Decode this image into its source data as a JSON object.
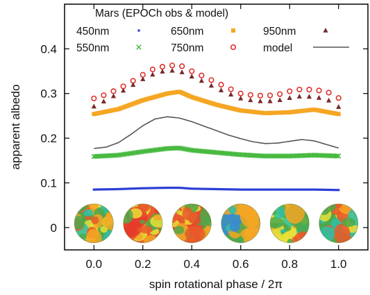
{
  "chart_data": {
    "type": "scatter",
    "title": "Mars (EPOCh obs & model)",
    "xlabel": "spin rotational phase / 2π",
    "ylabel": "apparent albedo",
    "xlim": [
      -0.12,
      1.12
    ],
    "ylim": [
      -0.05,
      0.5
    ],
    "x_ticks": [
      "0.0",
      "0.2",
      "0.4",
      "0.6",
      "0.8",
      "1.0"
    ],
    "y_ticks": [
      "0",
      "0.1",
      "0.2",
      "0.3",
      "0.4"
    ],
    "grid": false,
    "legend_position": "top",
    "series": [
      {
        "name": "450nm",
        "marker": "dot",
        "color": "#2c3fd6",
        "x": [
          0.0,
          0.1,
          0.2,
          0.3,
          0.35,
          0.4,
          0.5,
          0.6,
          0.7,
          0.8,
          0.9,
          1.0
        ],
        "y": [
          0.085,
          0.086,
          0.088,
          0.089,
          0.089,
          0.087,
          0.086,
          0.085,
          0.085,
          0.085,
          0.085,
          0.084
        ]
      },
      {
        "name": "550nm",
        "marker": "x",
        "color": "#44b83c",
        "x": [
          0.0,
          0.1,
          0.2,
          0.3,
          0.35,
          0.4,
          0.5,
          0.6,
          0.7,
          0.8,
          0.9,
          1.0
        ],
        "y": [
          0.159,
          0.162,
          0.17,
          0.177,
          0.178,
          0.173,
          0.168,
          0.163,
          0.16,
          0.16,
          0.162,
          0.16
        ]
      },
      {
        "name": "650nm",
        "marker": "square",
        "color": "#f5a623",
        "x": [
          0.0,
          0.1,
          0.2,
          0.3,
          0.35,
          0.4,
          0.5,
          0.6,
          0.7,
          0.8,
          0.9,
          1.0
        ],
        "y": [
          0.254,
          0.265,
          0.285,
          0.3,
          0.304,
          0.292,
          0.275,
          0.262,
          0.256,
          0.258,
          0.264,
          0.254
        ]
      },
      {
        "name": "750nm",
        "marker": "circle",
        "color": "#e0302a",
        "x": [
          0.0,
          0.05,
          0.1,
          0.15,
          0.2,
          0.25,
          0.3,
          0.35,
          0.4,
          0.45,
          0.5,
          0.55,
          0.6,
          0.65,
          0.7,
          0.75,
          0.8,
          0.85,
          0.9,
          0.95,
          1.0
        ],
        "y": [
          0.289,
          0.298,
          0.31,
          0.325,
          0.342,
          0.357,
          0.362,
          0.364,
          0.35,
          0.338,
          0.325,
          0.312,
          0.3,
          0.296,
          0.295,
          0.297,
          0.305,
          0.31,
          0.308,
          0.305,
          0.29
        ]
      },
      {
        "name": "950nm",
        "marker": "triangle",
        "color": "#7a2a2a",
        "x": [
          0.0,
          0.05,
          0.1,
          0.15,
          0.2,
          0.25,
          0.3,
          0.35,
          0.4,
          0.45,
          0.5,
          0.55,
          0.6,
          0.65,
          0.7,
          0.75,
          0.8,
          0.85,
          0.9,
          0.95,
          1.0
        ],
        "y": [
          0.271,
          0.285,
          0.3,
          0.316,
          0.332,
          0.345,
          0.352,
          0.35,
          0.338,
          0.326,
          0.312,
          0.3,
          0.289,
          0.284,
          0.282,
          0.284,
          0.29,
          0.294,
          0.292,
          0.288,
          0.27
        ]
      },
      {
        "name": "model",
        "marker": "line",
        "color": "#555555",
        "x": [
          0.0,
          0.05,
          0.1,
          0.15,
          0.2,
          0.25,
          0.3,
          0.35,
          0.4,
          0.45,
          0.5,
          0.55,
          0.6,
          0.65,
          0.7,
          0.75,
          0.8,
          0.85,
          0.9,
          0.95,
          1.0
        ],
        "y": [
          0.177,
          0.18,
          0.19,
          0.208,
          0.228,
          0.243,
          0.248,
          0.245,
          0.237,
          0.227,
          0.217,
          0.207,
          0.199,
          0.192,
          0.188,
          0.189,
          0.193,
          0.197,
          0.194,
          0.186,
          0.178
        ]
      }
    ],
    "globes": [
      {
        "x": 0.0,
        "y": 0.0,
        "palette": [
          "#4fa84a",
          "#e8e03a",
          "#f5a623",
          "#2cbfa8",
          "#e85a2a"
        ]
      },
      {
        "x": 0.2,
        "y": 0.0,
        "palette": [
          "#e85a2a",
          "#f5a623",
          "#e8e03a",
          "#4fa84a",
          "#e83a2a"
        ]
      },
      {
        "x": 0.4,
        "y": 0.0,
        "palette": [
          "#e84a2a",
          "#f5a623",
          "#e8e03a",
          "#4fa84a",
          "#e85a2a"
        ]
      },
      {
        "x": 0.6,
        "y": 0.0,
        "palette": [
          "#4fa84a",
          "#2cbfa8",
          "#e8e03a",
          "#f5a623",
          "#3a8ad6"
        ]
      },
      {
        "x": 0.8,
        "y": 0.0,
        "palette": [
          "#e8e03a",
          "#f5a623",
          "#4fa84a",
          "#e85a2a",
          "#2cbfa8"
        ]
      },
      {
        "x": 1.0,
        "y": 0.0,
        "palette": [
          "#4fa84a",
          "#e8e03a",
          "#2cbfa8",
          "#f5a623",
          "#e85a2a"
        ]
      }
    ]
  }
}
